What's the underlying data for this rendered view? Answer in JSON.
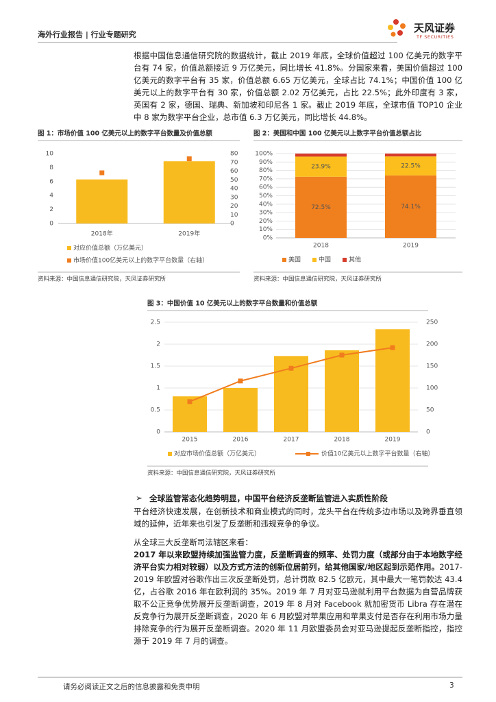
{
  "header": {
    "title": "海外行业报告 | 行业专题研究",
    "logo": "天风证券",
    "logo_sub": "TF SECURITIES"
  },
  "intro": "根据中国信息通信研究院的数据统计，截止 2019 年底，全球价值超过 100 亿美元的数字平台有 74 家，价值总额接近 9 万亿美元，同比增长 41.8%。分国家来看，美国价值超过 100 亿美元的数字平台有 35 家，价值总额 6.65 万亿美元，全球占比 74.1%；中国价值 100 亿美元以上的数字平台有 30 家，价值总额 2.02 万亿美元，占比 22.5%；此外印度有 3 家，英国有 2 家，德国、瑞典、新加坡和印尼各 1 家。截止 2019 年底，全球市值 TOP10 企业中 8 家为数字平台企业，总市值 6.3 万亿美元，同比增长 44.8%。",
  "chart_data": [
    {
      "type": "bar",
      "title": "图 1：市场价值 100 亿美元以上的数字平台数量及价值总额",
      "source": "资料来源：中国信息通信研究院，天风证券研究所",
      "categories": [
        "2018年",
        "2019年"
      ],
      "series": [
        {
          "name": "对应价值总额（万亿美元）",
          "type": "bar",
          "color": "#f8bb1f",
          "values": [
            6.3,
            8.9
          ]
        },
        {
          "name": "市场价值100亿美元以上的数字平台数量（右轴）",
          "type": "marker",
          "axis": "y2",
          "color": "#f07c1e",
          "values": [
            58,
            74
          ]
        }
      ],
      "ylim": [
        0,
        10
      ],
      "yticks": [
        0,
        2,
        4,
        6,
        8,
        10
      ],
      "y2lim": [
        0,
        80
      ],
      "y2ticks": [
        0,
        10,
        20,
        30,
        40,
        50,
        60,
        70,
        80
      ],
      "grid": false,
      "legend": "bottom"
    },
    {
      "type": "bar",
      "stacked": true,
      "title": "图 2：美国和中国 100 亿美元以上数字平台价值总额占比",
      "source": "资料来源：中国信息通信研究院，天风证券研究所",
      "categories": [
        "2018",
        "2019"
      ],
      "series": [
        {
          "name": "美国",
          "type": "bar",
          "color": "#f07f1e",
          "values": [
            72.5,
            74.1
          ],
          "value_labels": [
            "72.5%",
            "74.1%"
          ]
        },
        {
          "name": "中国",
          "type": "bar",
          "color": "#fbbe1c",
          "values": [
            23.9,
            22.5
          ],
          "value_labels": [
            "23.9%",
            "22.5%"
          ]
        },
        {
          "name": "其他",
          "type": "bar",
          "color": "#d63b2b",
          "values": [
            3.6,
            3.4
          ],
          "value_labels": [
            null,
            null
          ]
        }
      ],
      "ylim": [
        0,
        100
      ],
      "yticks": [
        {
          "value": 0,
          "label": "0%"
        },
        {
          "value": 10,
          "label": "10%"
        },
        {
          "value": 20,
          "label": "20%"
        },
        {
          "value": 30,
          "label": "30%"
        },
        {
          "value": 40,
          "label": "40%"
        },
        {
          "value": 50,
          "label": "50%"
        },
        {
          "value": 60,
          "label": "60%"
        },
        {
          "value": 70,
          "label": "70%"
        },
        {
          "value": 80,
          "label": "80%"
        },
        {
          "value": 90,
          "label": "90%"
        },
        {
          "value": 100,
          "label": "100%"
        }
      ],
      "grid": true,
      "legend": "bottom"
    },
    {
      "type": "bar",
      "title": "图 3：中国价值 10 亿美元以上的数字平台数量和价值总额",
      "source": "资料来源：中国信息通信研究院，天风证券研究所",
      "categories": [
        "2015",
        "2016",
        "2017",
        "2018",
        "2019"
      ],
      "series": [
        {
          "name": "对应市场价值总额（万亿美元）",
          "type": "bar",
          "color": "#f8bb1f",
          "values": [
            0.81,
            1.0,
            1.73,
            1.86,
            2.34
          ]
        },
        {
          "name": "价值10亿美元以上数字平台数量（右轴）",
          "type": "line",
          "axis": "y2",
          "color": "#f07c1e",
          "values": [
            69,
            116,
            145,
            175,
            192
          ]
        }
      ],
      "ylim": [
        0,
        2.5
      ],
      "yticks": [
        0,
        0.5,
        1,
        1.5,
        2,
        2.5
      ],
      "y2lim": [
        0,
        250
      ],
      "y2ticks": [
        0,
        50,
        100,
        150,
        200,
        250
      ],
      "grid": true,
      "legend": "bottom"
    }
  ],
  "section_heading": "全球监管常态化趋势明显，中国平台经济反垄断监管进入实质性阶段",
  "paragraphs": [
    {
      "text": "平台经济快速发展，在创新技术和商业模式的同时，龙头平台在传统多边市场以及跨界垂直领域的延伸，近年来也引发了反垄断和违规竞争的争议。"
    },
    {
      "text": "从全球三大反垄断司法辖区来看："
    },
    {
      "bold": "2017 年以来欧盟持续加强监管力度，反垄断调查的频率、处罚力度（或部分由于本地数字经济平台实力相对较弱）以及方式方法的创新位居前列，给其他国家/地区起到示范作用。",
      "text": "2017-2019 年欧盟对谷歌作出三次反垄断处罚，总计罚款 82.5 亿欧元，其中最大一笔罚款达 43.4 亿，占谷歌 2016 年在欧利润的 35%。2019 年 7 月对亚马逊就利用平台数据为自营品牌获取不公正竞争优势展开反垄断调查，2019 年 8 月对 Facebook 就加密货币 Libra 存在潜在反竞争行为展开反垄断调查，2020 年 6 月欧盟对苹果应用和苹果支付是否存在利用市场力量排除竞争的行为展开反垄断调查。2020 年 11 月欧盟委员会对亚马逊提起反垄断指控，指控源于 2019 年 7 月的调查。"
    }
  ],
  "footer": {
    "disclaimer": "请务必阅读正文之后的信息披露和免责申明",
    "page": "3"
  }
}
